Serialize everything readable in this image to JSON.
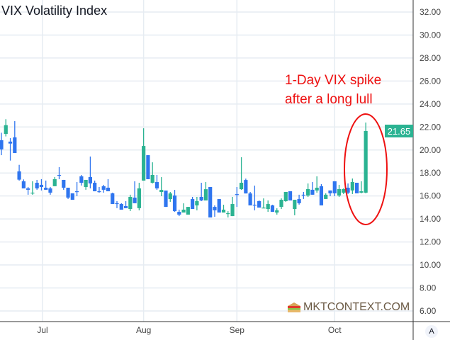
{
  "chart_data": {
    "type": "candlestick",
    "title": "VIX Volatility Index",
    "ylim": [
      5,
      33
    ],
    "y_ticks": [
      "32.00",
      "30.00",
      "28.00",
      "26.00",
      "24.00",
      "22.00",
      "20.00",
      "18.00",
      "16.00",
      "14.00",
      "12.00",
      "10.00",
      "8.00",
      "6.00"
    ],
    "x_labels": [
      {
        "label": "Jul",
        "index": 9.25
      },
      {
        "label": "Aug",
        "index": 32
      },
      {
        "label": "Sep",
        "index": 53
      },
      {
        "label": "Oct",
        "index": 75
      }
    ],
    "grid": true,
    "last_price": "21.65",
    "colors": {
      "up": "#2bb392",
      "down": "#2f75ef",
      "annotation": "#ee1111",
      "last_price_tag": "#2bb392"
    },
    "annotation": {
      "lines": [
        "1-Day VIX spike",
        "after a long lull"
      ]
    },
    "ohlc": [
      [
        20.85,
        21.5,
        19.55,
        20.05
      ],
      [
        21.4,
        22.68,
        21.18,
        22.16
      ],
      [
        20.73,
        21.03,
        19.08,
        20.56
      ],
      [
        21.1,
        22.51,
        19.74,
        19.74
      ],
      [
        18.14,
        18.71,
        17.34,
        17.42
      ],
      [
        17.28,
        17.44,
        16.66,
        16.66
      ],
      [
        16.66,
        16.78,
        16.11,
        16.54
      ],
      [
        16.23,
        17.28,
        16.11,
        16.29
      ],
      [
        17.15,
        17.4,
        16.54,
        16.66
      ],
      [
        16.97,
        17.46,
        16.48,
        16.78
      ],
      [
        16.72,
        17.34,
        16.54,
        16.54
      ],
      [
        16.66,
        16.78,
        16.11,
        16.29
      ],
      [
        16.85,
        17.65,
        16.85,
        17.46
      ],
      [
        17.83,
        18.51,
        17.46,
        17.77
      ],
      [
        17.4,
        17.4,
        16.54,
        16.72
      ],
      [
        16.72,
        16.72,
        15.74,
        15.86
      ],
      [
        16.23,
        16.23,
        15.67,
        15.67
      ],
      [
        16.41,
        17.21,
        15.98,
        16.35
      ],
      [
        17.71,
        17.83,
        16.91,
        17.15
      ],
      [
        16.78,
        17.4,
        16.54,
        17.4
      ],
      [
        17.65,
        19.43,
        16.66,
        17.09
      ],
      [
        17.15,
        17.34,
        16.41,
        16.41
      ],
      [
        16.41,
        16.78,
        16.29,
        16.35
      ],
      [
        16.85,
        16.97,
        16.29,
        16.54
      ],
      [
        16.72,
        17.46,
        16.41,
        16.41
      ],
      [
        16.23,
        16.29,
        15.3,
        15.3
      ],
      [
        15.37,
        15.55,
        14.94,
        15.3
      ],
      [
        15.3,
        15.37,
        14.81,
        14.81
      ],
      [
        15.12,
        15.55,
        14.94,
        14.94
      ],
      [
        14.87,
        16.11,
        14.69,
        15.92
      ],
      [
        15.86,
        17.28,
        15.37,
        15.37
      ],
      [
        14.94,
        17.15,
        14.75,
        16.66
      ],
      [
        17.34,
        21.89,
        17.34,
        20.35
      ],
      [
        19.55,
        19.55,
        17.46,
        17.46
      ],
      [
        17.15,
        18.93,
        17.09,
        17.83
      ],
      [
        17.21,
        17.83,
        16.53,
        16.66
      ],
      [
        16.35,
        17.64,
        15.98,
        16.53
      ],
      [
        16.47,
        16.47,
        15.05,
        15.05
      ],
      [
        15.73,
        16.35,
        15.49,
        16.22
      ],
      [
        16.04,
        16.53,
        14.62,
        14.68
      ],
      [
        14.62,
        14.81,
        14.25,
        14.38
      ],
      [
        14.56,
        15.36,
        14.56,
        14.81
      ],
      [
        14.38,
        15.05,
        14.38,
        15.05
      ],
      [
        15.73,
        15.92,
        14.87,
        14.87
      ],
      [
        15.18,
        15.92,
        14.75,
        15.55
      ],
      [
        15.92,
        17.15,
        15.55,
        15.61
      ],
      [
        15.61,
        17.21,
        15.61,
        16.59
      ],
      [
        16.78,
        16.78,
        14.13,
        14.13
      ],
      [
        15.05,
        15.18,
        14.19,
        14.75
      ],
      [
        15.73,
        15.73,
        14.56,
        14.56
      ],
      [
        14.56,
        15.24,
        14.56,
        14.81
      ],
      [
        14.44,
        14.68,
        14.13,
        14.5
      ],
      [
        14.25,
        15.92,
        14.25,
        15.3
      ],
      [
        16.16,
        16.78,
        15.05,
        16.1
      ],
      [
        16.59,
        19.37,
        16.53,
        17.15
      ],
      [
        17.39,
        17.51,
        16.22,
        16.22
      ],
      [
        16.22,
        16.35,
        15.18,
        15.18
      ],
      [
        15.24,
        16.9,
        14.75,
        15.18
      ],
      [
        15.55,
        15.61,
        14.99,
        14.99
      ],
      [
        14.93,
        15.79,
        14.93,
        14.99
      ],
      [
        14.87,
        15.61,
        14.62,
        15.3
      ],
      [
        15.18,
        15.24,
        14.62,
        14.62
      ],
      [
        14.56,
        14.93,
        14.38,
        14.75
      ],
      [
        15.05,
        15.79,
        14.87,
        15.67
      ],
      [
        15.55,
        16.35,
        15.49,
        16.35
      ],
      [
        16.41,
        16.41,
        15.61,
        15.61
      ],
      [
        14.87,
        15.67,
        14.32,
        15.67
      ],
      [
        15.73,
        16.11,
        15.25,
        15.37
      ],
      [
        16.11,
        16.35,
        15.74,
        16.04
      ],
      [
        16.04,
        17.09,
        15.92,
        16.6
      ],
      [
        16.54,
        17.21,
        16.11,
        16.11
      ],
      [
        16.48,
        17.71,
        16.29,
        16.72
      ],
      [
        16.85,
        17.03,
        15.18,
        15.18
      ],
      [
        15.74,
        16.23,
        15.74,
        16.11
      ],
      [
        16.48,
        16.48,
        15.98,
        16.23
      ],
      [
        17.28,
        17.28,
        15.98,
        16.23
      ],
      [
        16.04,
        16.97,
        15.92,
        16.6
      ],
      [
        16.29,
        16.66,
        16.17,
        16.6
      ],
      [
        16.72,
        17.09,
        16.17,
        16.29
      ],
      [
        16.48,
        17.52,
        16.17,
        17.21
      ],
      [
        17.15,
        17.15,
        16.23,
        16.23
      ],
      [
        16.29,
        17.28,
        16.23,
        16.41
      ],
      [
        16.29,
        22.39,
        16.23,
        21.65
      ]
    ]
  },
  "watermark": "MKTCONTEXT.COM",
  "axis_button": "A"
}
